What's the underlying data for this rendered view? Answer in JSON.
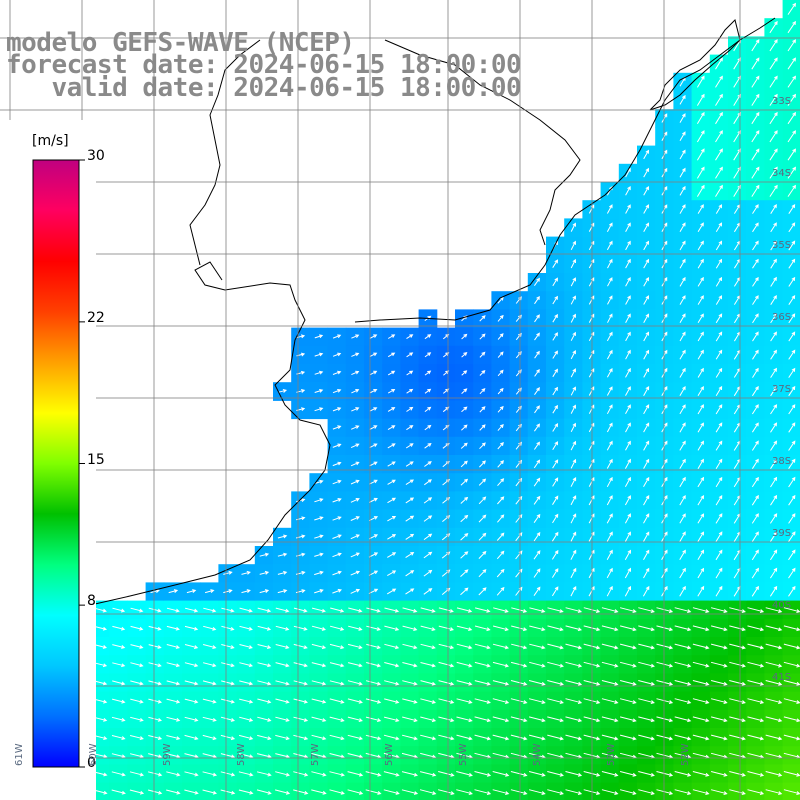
{
  "title": {
    "line1": "modelo GEFS-WAVE (NCEP)",
    "line2": "forecast date: 2024-06-15 18:00:00",
    "line3": "   valid date: 2024-06-15 18:00:00"
  },
  "colorbar": {
    "unit": "[m/s]",
    "ticks": [
      {
        "label": "30",
        "value": 30
      },
      {
        "label": "22",
        "value": 22
      },
      {
        "label": "15",
        "value": 15
      },
      {
        "label": "8",
        "value": 8
      },
      {
        "label": "0",
        "value": 0
      }
    ],
    "min": 0,
    "max": 30,
    "colors": [
      "#0000ff",
      "#0070ff",
      "#00c8ff",
      "#00ffff",
      "#00ff80",
      "#00c000",
      "#80ff00",
      "#ffff00",
      "#ffa000",
      "#ff4000",
      "#ff0000",
      "#ff0060",
      "#c00080"
    ]
  },
  "grid": {
    "lat_labels": [
      "33S",
      "34S",
      "35S",
      "36S",
      "37S",
      "38S",
      "39S",
      "40S",
      "41S"
    ],
    "lon_labels": [
      "61W",
      "60W",
      "59W",
      "58W",
      "57W",
      "56W",
      "55W",
      "54W",
      "53W",
      "52W"
    ]
  },
  "colors": {
    "land": "#ffffff",
    "coast": "#000000",
    "grid": "#808080",
    "arrow": "#ffffff",
    "title": "#8a8a8a"
  }
}
